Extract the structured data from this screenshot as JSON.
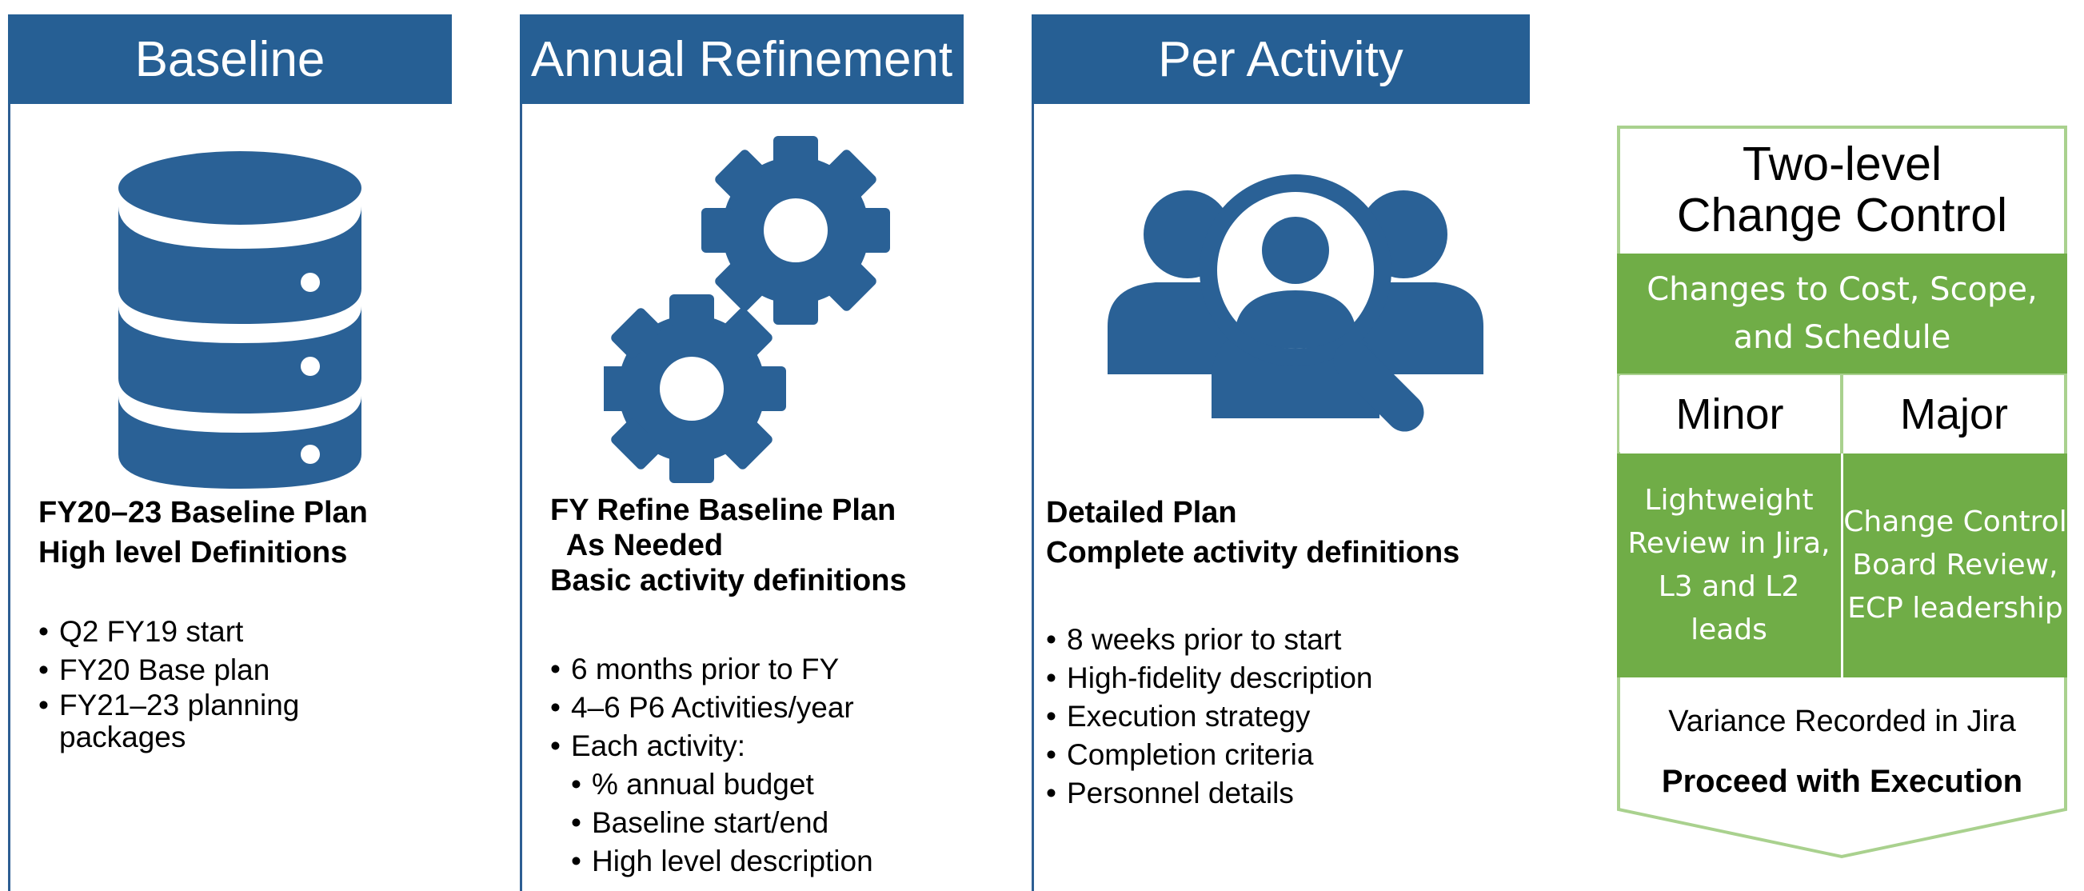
{
  "columns": [
    {
      "header": "Baseline",
      "icon": "database-icon",
      "title_lines": [
        "FY20–23 Baseline Plan",
        "High level Definitions"
      ],
      "bullets": [
        {
          "text": "Q2 FY19 start",
          "sub": false
        },
        {
          "text": "FY20 Base plan",
          "sub": false
        },
        {
          "text": "FY21–23 planning\npackages",
          "sub": false
        }
      ]
    },
    {
      "header": "Annual Refinement",
      "icon": "gears-icon",
      "title_lines": [
        "FY Refine Baseline Plan",
        "  As Needed",
        "Basic activity definitions"
      ],
      "bullets": [
        {
          "text": "6 months prior to FY",
          "sub": false
        },
        {
          "text": "4–6 P6 Activities/year",
          "sub": false
        },
        {
          "text": "Each activity:",
          "sub": false
        },
        {
          "text": "% annual budget",
          "sub": true
        },
        {
          "text": "Baseline start/end",
          "sub": true
        },
        {
          "text": "High level description",
          "sub": true
        }
      ]
    },
    {
      "header": "Per Activity",
      "icon": "people-search-icon",
      "title_lines": [
        "Detailed Plan",
        "Complete activity definitions"
      ],
      "bullets": [
        {
          "text": "8 weeks prior to start",
          "sub": false
        },
        {
          "text": "High-fidelity description",
          "sub": false
        },
        {
          "text": "Execution strategy",
          "sub": false
        },
        {
          "text": "Completion criteria",
          "sub": false
        },
        {
          "text": "Personnel details",
          "sub": false
        }
      ]
    }
  ],
  "change_control": {
    "title_line1": "Two-level",
    "title_line2": "Change Control",
    "changes_text": "Changes to Cost, Scope, and Schedule",
    "minor_label": "Minor",
    "major_label": "Major",
    "minor_text": "Lightweight Review in Jira, L3 and L2 leads",
    "major_text": "Change Control Board Review, ECP leadership",
    "variance_text": "Variance Recorded in Jira",
    "proceed_text": "Proceed with Execution"
  },
  "colors": {
    "header_blue": "#265f94",
    "icon_blue": "#2a6196",
    "green": "#70ad47",
    "light_green_border": "#a9d18e"
  }
}
